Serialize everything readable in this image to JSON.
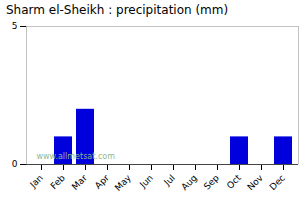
{
  "chart_data": {
    "type": "bar",
    "title": "Sharm el-Sheikh : precipitation (mm)",
    "categories": [
      "Jan",
      "Feb",
      "Mar",
      "Apr",
      "May",
      "Jun",
      "Jul",
      "Aug",
      "Sep",
      "Oct",
      "Nov",
      "Dec"
    ],
    "values": [
      0,
      1.0,
      2.0,
      0,
      0,
      0,
      0,
      0,
      0,
      1.0,
      0,
      1.0
    ],
    "color": "#0000dd",
    "ylim": [
      0,
      5
    ],
    "yticks": [
      0,
      5
    ],
    "grid": false,
    "annotations": [
      "www.allmetsat.com"
    ]
  }
}
